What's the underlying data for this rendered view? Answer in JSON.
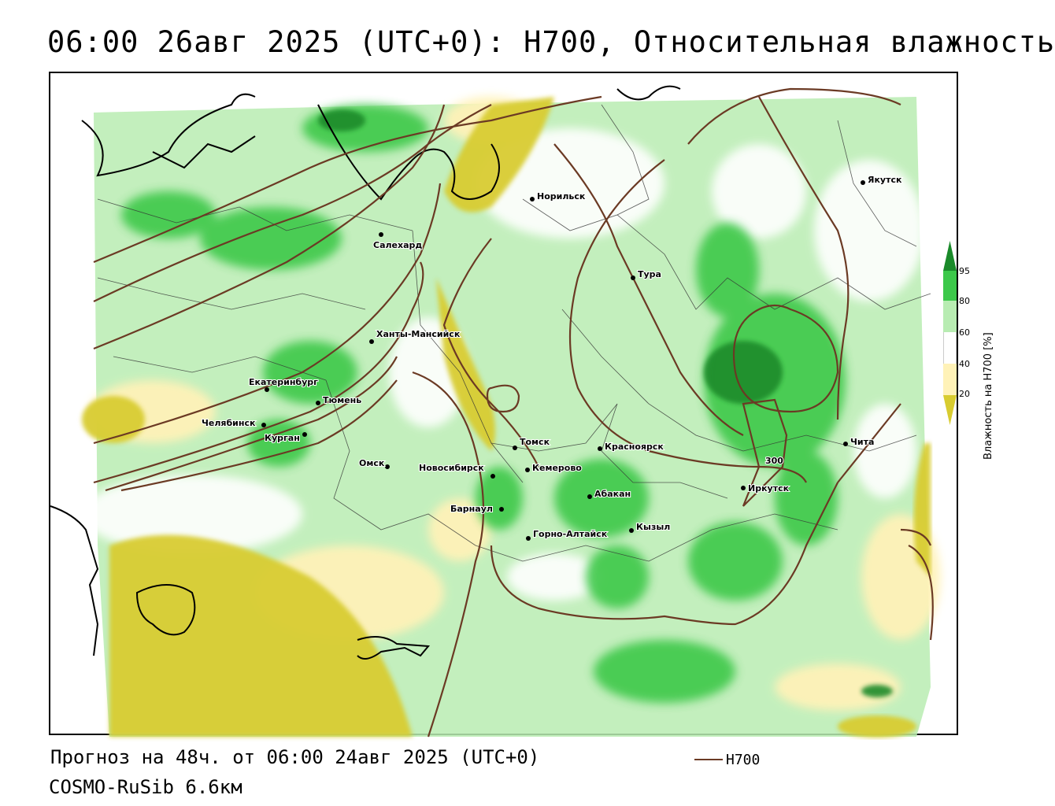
{
  "title": "06:00 26авг 2025 (UTC+0): H700, Относительная влажность",
  "footer": {
    "forecast_line": "Прогноз на 48ч. от 06:00 24авг 2025 (UTC+0)",
    "model_line": "COSMO-RuSib 6.6км"
  },
  "legend": {
    "line_label": "H700",
    "line_color": "#6b3a24"
  },
  "colorbar": {
    "title": "Влажность на H700 [%]",
    "ticks": [
      "95",
      "80",
      "60",
      "40",
      "20"
    ],
    "colors": {
      "above_95": "#1a8a2a",
      "80_95": "#3cc84a",
      "60_80": "#b8ecb2",
      "40_60": "#ffffff",
      "20_40": "#fff2b8",
      "below_20": "#d8cc30"
    }
  },
  "contour_labels": [
    "300"
  ],
  "cities": [
    {
      "name": "Якутск"
    },
    {
      "name": "Норильск"
    },
    {
      "name": "Салехард"
    },
    {
      "name": "Тура"
    },
    {
      "name": "Ханты-Мансийск"
    },
    {
      "name": "Екатеринбург"
    },
    {
      "name": "Тюмень"
    },
    {
      "name": "Челябинск"
    },
    {
      "name": "Курган"
    },
    {
      "name": "Омск"
    },
    {
      "name": "Томск"
    },
    {
      "name": "Красноярск"
    },
    {
      "name": "Новосибирск"
    },
    {
      "name": "Кемерово"
    },
    {
      "name": "Абакан"
    },
    {
      "name": "Барнаул"
    },
    {
      "name": "Горно-Алтайск"
    },
    {
      "name": "Кызыл"
    },
    {
      "name": "Иркутск"
    },
    {
      "name": "Чита"
    }
  ]
}
